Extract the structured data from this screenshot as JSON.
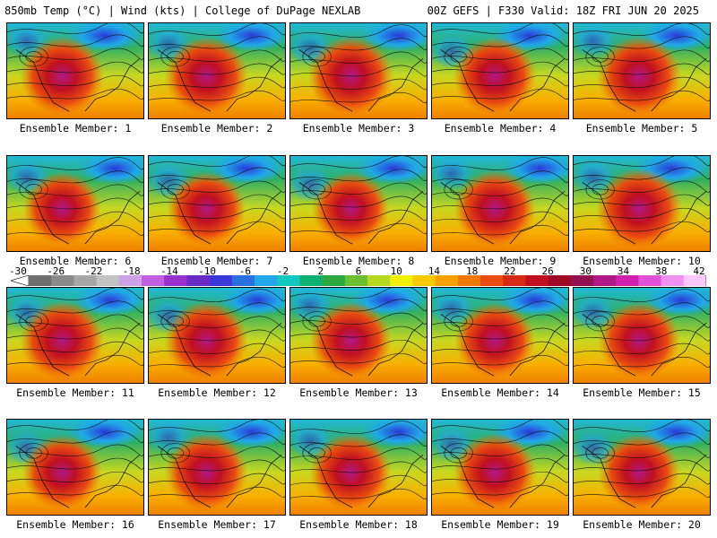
{
  "header": {
    "left": "850mb Temp (°C) | Wind (kts) | College of DuPage NEXLAB",
    "right": "00Z GEFS | F330 Valid: 18Z FRI JUN 20 2025"
  },
  "colorbar": {
    "labels": [
      "-30",
      "-26",
      "-22",
      "-18",
      "-14",
      "-10",
      "-6",
      "-2",
      "2",
      "6",
      "10",
      "14",
      "18",
      "22",
      "26",
      "30",
      "34",
      "38",
      "42"
    ],
    "colors": [
      "#6e6e6e",
      "#8a8a8a",
      "#a6a6a6",
      "#c2c2c2",
      "#d0a0e8",
      "#c060e0",
      "#9a30d0",
      "#6a2cc8",
      "#3a38d8",
      "#2a70e0",
      "#20a8e8",
      "#10c8c0",
      "#10b070",
      "#2ca840",
      "#6cc030",
      "#b8d820",
      "#f0f000",
      "#f8c800",
      "#f8a000",
      "#f07800",
      "#e84c10",
      "#d82818",
      "#c01020",
      "#a00828",
      "#901050",
      "#b01888",
      "#d020b0",
      "#e050d8",
      "#f090f0",
      "#fcc8fc"
    ]
  },
  "panels": [
    {
      "label": "Ensemble Member: 1",
      "heat": 0.8
    },
    {
      "label": "Ensemble Member: 2",
      "heat": 0.78
    },
    {
      "label": "Ensemble Member: 3",
      "heat": 0.82
    },
    {
      "label": "Ensemble Member: 4",
      "heat": 0.76
    },
    {
      "label": "Ensemble Member: 5",
      "heat": 0.8
    },
    {
      "label": "Ensemble Member: 6",
      "heat": 0.64
    },
    {
      "label": "Ensemble Member: 7",
      "heat": 0.66
    },
    {
      "label": "Ensemble Member: 8",
      "heat": 0.62
    },
    {
      "label": "Ensemble Member: 9",
      "heat": 0.74
    },
    {
      "label": "Ensemble Member: 10",
      "heat": 0.84
    },
    {
      "label": "Ensemble Member: 11",
      "heat": 0.8
    },
    {
      "label": "Ensemble Member: 12",
      "heat": 0.78
    },
    {
      "label": "Ensemble Member: 13",
      "heat": 0.74
    },
    {
      "label": "Ensemble Member: 14",
      "heat": 0.7
    },
    {
      "label": "Ensemble Member: 15",
      "heat": 0.74
    },
    {
      "label": "Ensemble Member: 16",
      "heat": 0.68
    },
    {
      "label": "Ensemble Member: 17",
      "heat": 0.76
    },
    {
      "label": "Ensemble Member: 18",
      "heat": 0.74
    },
    {
      "label": "Ensemble Member: 19",
      "heat": 0.76
    },
    {
      "label": "Ensemble Member: 20",
      "heat": 0.72
    }
  ]
}
